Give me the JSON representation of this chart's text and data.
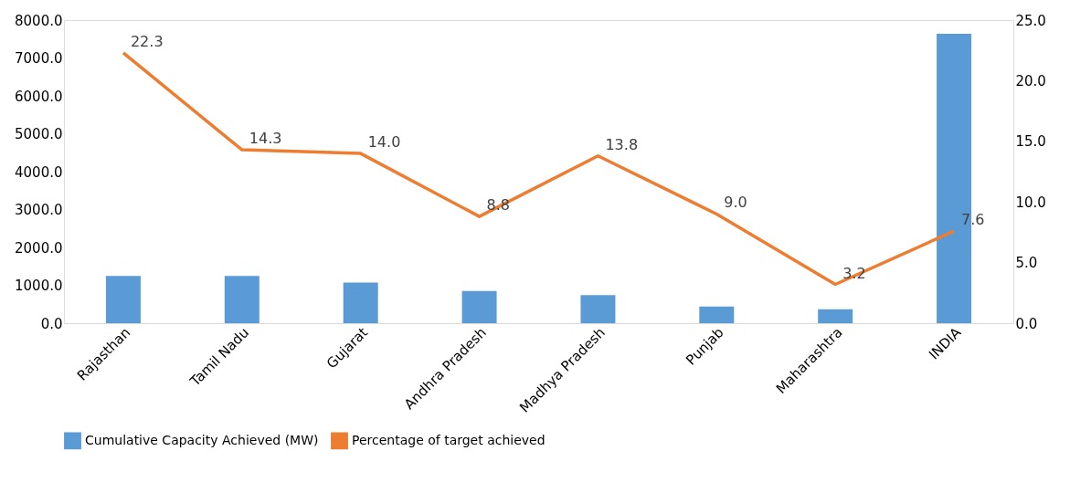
{
  "chart_data": {
    "type": "bar",
    "categories": [
      "Rajasthan",
      "Tamil Nadu",
      "Gujarat",
      "Andhra Pradesh",
      "Madhya Pradesh",
      "Punjab",
      "Maharashtra",
      "INDIA"
    ],
    "series": [
      {
        "name": "Cumulative Capacity Achieved (MW)",
        "color": "#5b9bd5",
        "values": [
          1250,
          1250,
          1070,
          850,
          740,
          440,
          370,
          7640
        ]
      },
      {
        "name": "Percentage of target achieved",
        "type": "line",
        "axis": "y2",
        "color": "#ed7d31",
        "values": [
          22.3,
          14.3,
          14.0,
          8.8,
          13.8,
          9.0,
          3.2,
          7.6
        ],
        "value_labels": [
          "22.3",
          "14.3",
          "14.0",
          "8.8",
          "13.8",
          "9.0",
          "3.2",
          "7.6"
        ]
      }
    ],
    "ylim": [
      0,
      8000
    ],
    "yticks": [
      {
        "value": 0,
        "label": "0.0"
      },
      {
        "value": 1000,
        "label": "1000.0"
      },
      {
        "value": 2000,
        "label": "2000.0"
      },
      {
        "value": 3000,
        "label": "3000.0"
      },
      {
        "value": 4000,
        "label": "4000.0"
      },
      {
        "value": 5000,
        "label": "5000.0"
      },
      {
        "value": 6000,
        "label": "6000.0"
      },
      {
        "value": 7000,
        "label": "7000.0"
      },
      {
        "value": 8000,
        "label": "8000.0"
      }
    ],
    "y2lim": [
      0,
      25
    ],
    "y2ticks": [
      {
        "value": 0,
        "label": "0.0"
      },
      {
        "value": 5,
        "label": "5.0"
      },
      {
        "value": 10,
        "label": "10.0"
      },
      {
        "value": 15,
        "label": "15.0"
      },
      {
        "value": 20,
        "label": "20.0"
      },
      {
        "value": 25,
        "label": "25.0"
      }
    ],
    "grid": false,
    "legend": "bottom",
    "marker": "none",
    "line_style": "solid"
  }
}
